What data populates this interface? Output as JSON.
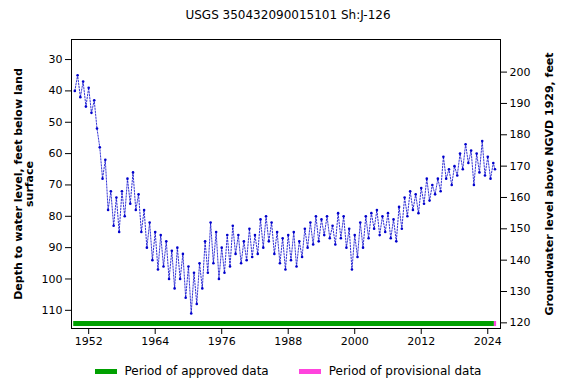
{
  "chart_data": {
    "type": "scatter",
    "title": "USGS 350432090015101 Sh:J-126",
    "y_label": "Depth to water level, feet below land\nsurface",
    "y2_label": "Groundwater level above NGVD 1929, feet",
    "xlim": [
      1948.9,
      2026.3
    ],
    "xticks": [
      1952,
      1964,
      1976,
      1988,
      2000,
      2012,
      2024
    ],
    "ylim": [
      23.6,
      115.8
    ],
    "yticks": [
      30,
      40,
      50,
      60,
      70,
      80,
      90,
      100,
      110
    ],
    "y2lim": [
      210.4,
      118.2
    ],
    "y2ticks": [
      120,
      130,
      140,
      150,
      160,
      170,
      180,
      190,
      200
    ],
    "grid": false,
    "series": [
      {
        "name": "Depth to water level",
        "color": "#0000cc",
        "marker": "circle",
        "line_style": "dotted",
        "x": [
          1949.5,
          1950,
          1950.5,
          1951,
          1951.5,
          1952,
          1952.5,
          1953,
          1953.5,
          1954,
          1954.5,
          1955,
          1955.5,
          1956,
          1956.5,
          1957,
          1957.5,
          1958,
          1958.5,
          1959,
          1959.5,
          1960,
          1960.5,
          1961,
          1961.5,
          1962,
          1962.5,
          1963,
          1963.5,
          1964,
          1964.5,
          1965,
          1965.5,
          1966,
          1966.5,
          1967,
          1967.5,
          1968,
          1968.5,
          1969,
          1969.5,
          1970,
          1970.5,
          1971,
          1971.5,
          1972,
          1972.5,
          1973,
          1973.5,
          1974,
          1974.5,
          1975,
          1975.5,
          1976,
          1976.5,
          1977,
          1977.5,
          1978,
          1978.5,
          1979,
          1979.5,
          1980,
          1980.5,
          1981,
          1981.5,
          1982,
          1982.5,
          1983,
          1983.5,
          1984,
          1984.5,
          1985,
          1985.5,
          1986,
          1986.5,
          1987,
          1987.5,
          1988,
          1988.5,
          1989,
          1989.5,
          1990,
          1990.5,
          1991,
          1991.5,
          1992,
          1992.5,
          1993,
          1993.5,
          1994,
          1994.5,
          1995,
          1995.5,
          1996,
          1996.5,
          1997,
          1997.5,
          1998,
          1998.5,
          1999,
          1999.5,
          2000,
          2000.5,
          2001,
          2001.5,
          2002,
          2002.5,
          2003,
          2003.5,
          2004,
          2004.5,
          2005,
          2005.5,
          2006,
          2006.5,
          2007,
          2007.5,
          2008,
          2008.5,
          2009,
          2009.5,
          2010,
          2010.5,
          2011,
          2011.5,
          2012,
          2012.5,
          2013,
          2013.5,
          2014,
          2014.5,
          2015,
          2015.5,
          2016,
          2016.5,
          2017,
          2017.5,
          2018,
          2018.5,
          2019,
          2019.5,
          2020,
          2020.5,
          2021,
          2021.5,
          2022,
          2022.5,
          2023,
          2023.5,
          2024,
          2024.5,
          2025,
          2025.3
        ],
        "values": [
          40,
          35,
          42,
          37,
          45,
          39,
          47,
          43,
          52,
          58,
          68,
          62,
          78,
          72,
          83,
          74,
          85,
          72,
          80,
          68,
          76,
          66,
          78,
          73,
          85,
          78,
          90,
          82,
          94,
          85,
          97,
          86,
          96,
          88,
          100,
          91,
          103,
          90,
          100,
          92,
          106,
          96,
          111,
          98,
          108,
          95,
          103,
          88,
          98,
          82,
          95,
          85,
          100,
          90,
          98,
          86,
          96,
          83,
          92,
          86,
          95,
          88,
          94,
          84,
          93,
          86,
          92,
          81,
          90,
          80,
          88,
          82,
          92,
          85,
          95,
          87,
          97,
          86,
          94,
          85,
          96,
          88,
          93,
          84,
          90,
          82,
          89,
          80,
          88,
          81,
          86,
          80,
          87,
          83,
          89,
          79,
          87,
          80,
          90,
          84,
          97,
          86,
          93,
          82,
          90,
          80,
          87,
          79,
          84,
          78,
          86,
          80,
          85,
          79,
          87,
          81,
          88,
          77,
          84,
          74,
          80,
          72,
          78,
          73,
          79,
          71,
          76,
          68,
          75,
          70,
          73,
          68,
          72,
          61,
          68,
          65,
          70,
          64,
          67,
          60,
          65,
          57,
          63,
          59,
          70,
          60,
          66,
          56,
          67,
          61,
          68,
          63,
          65
        ]
      }
    ],
    "periods": [
      {
        "name": "Period of approved data",
        "color": "#00a000",
        "start": 1949.3,
        "end": 2025.2
      },
      {
        "name": "Period of provisional data",
        "color": "#ff44dd",
        "start": 2025.2,
        "end": 2025.6
      }
    ]
  }
}
